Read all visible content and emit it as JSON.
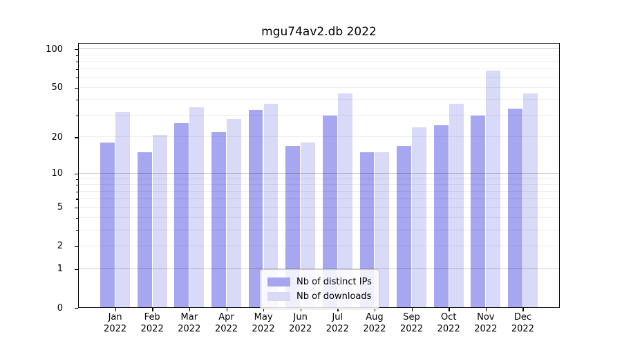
{
  "chart_data": {
    "type": "bar",
    "title": "mgu74av2.db 2022",
    "categories": [
      "Jan",
      "Feb",
      "Mar",
      "Apr",
      "May",
      "Jun",
      "Jul",
      "Aug",
      "Sep",
      "Oct",
      "Nov",
      "Dec"
    ],
    "category_year": "2022",
    "series": [
      {
        "name": "Nb of distinct IPs",
        "color": "#a6a6f1",
        "values": [
          18,
          15,
          26,
          22,
          33,
          17,
          30,
          15,
          17,
          25,
          30,
          34
        ]
      },
      {
        "name": "Nb of downloads",
        "color": "#d9d9f8",
        "values": [
          32,
          21,
          35,
          28,
          37,
          18,
          45,
          15,
          24,
          37,
          68,
          45
        ]
      }
    ],
    "xlabel": "",
    "ylabel": "",
    "yscale": "log1p",
    "ylim": [
      0,
      112
    ],
    "ytick_values": [
      0,
      1,
      2,
      5,
      10,
      20,
      50,
      100
    ],
    "ytick_labels": [
      "0",
      "1",
      "2",
      "5",
      "10",
      "20",
      "50",
      "100"
    ],
    "major_gridlines": [
      1,
      10,
      100
    ],
    "minor_gridlines": [
      2,
      3,
      4,
      5,
      6,
      7,
      8,
      9,
      20,
      30,
      40,
      50,
      60,
      70,
      80,
      90
    ],
    "grid": true,
    "legend": {
      "position": "lower-center",
      "entries": [
        "Nb of distinct IPs",
        "Nb of downloads"
      ]
    }
  }
}
